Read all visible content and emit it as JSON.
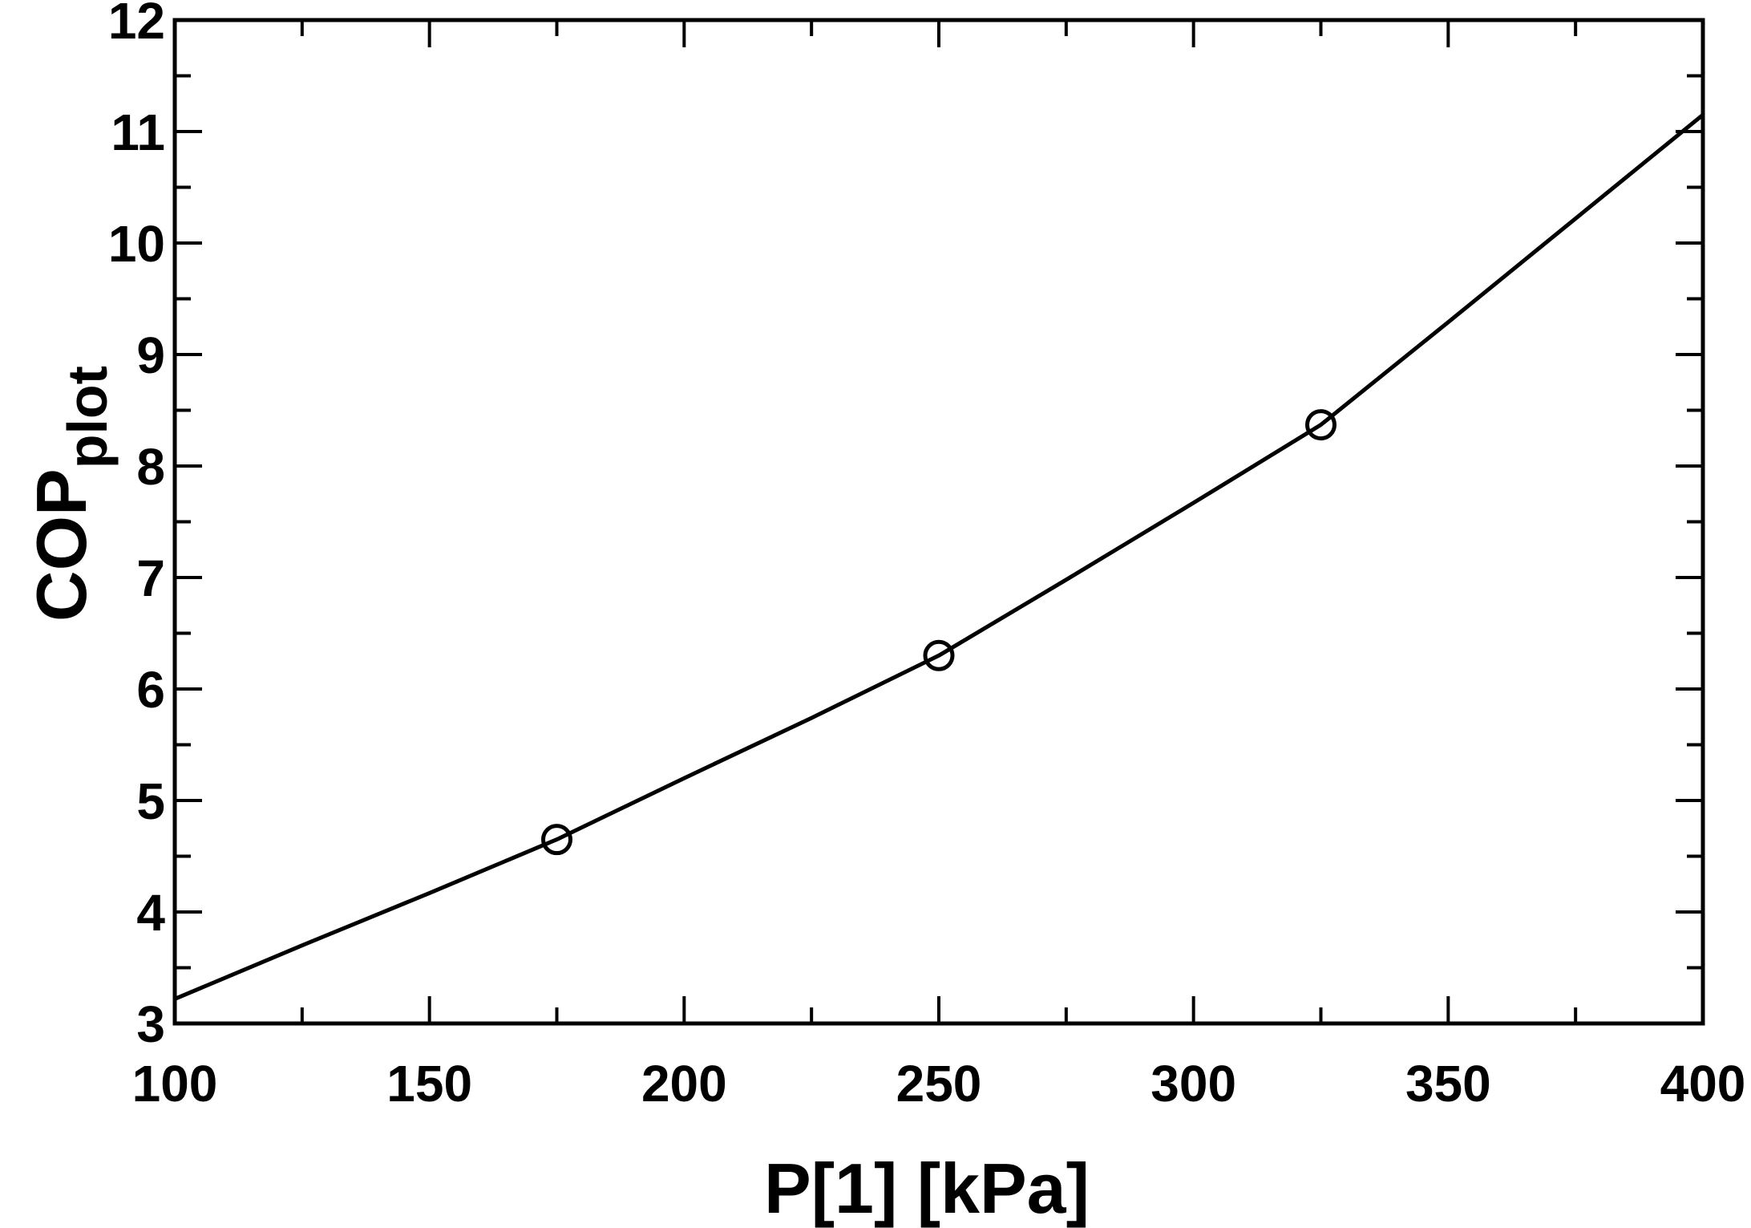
{
  "chart_data": {
    "type": "line",
    "title": "",
    "xlabel": "P[1]  [kPa]",
    "ylabel": "COP",
    "ylabel_subscript": "plot",
    "xlim": [
      100,
      400
    ],
    "ylim": [
      3,
      12
    ],
    "x_ticks": [
      100,
      150,
      200,
      250,
      300,
      350,
      400
    ],
    "y_ticks": [
      3,
      4,
      5,
      6,
      7,
      8,
      9,
      10,
      11,
      12
    ],
    "x_minor_step": 25,
    "y_minor_step": 0.5,
    "grid": false,
    "series": [
      {
        "x": [
          100,
          125,
          150,
          175,
          200,
          225,
          250,
          275,
          300,
          325,
          350,
          375,
          400
        ],
        "y": [
          3.22,
          3.7,
          4.17,
          4.65,
          5.2,
          5.74,
          6.3,
          6.98,
          7.67,
          8.37,
          9.29,
          10.22,
          11.15
        ]
      }
    ],
    "markers": {
      "x": [
        175,
        250,
        325
      ],
      "y": [
        4.65,
        6.3,
        8.37
      ],
      "shape": "circle"
    },
    "line_color": "#000000"
  }
}
